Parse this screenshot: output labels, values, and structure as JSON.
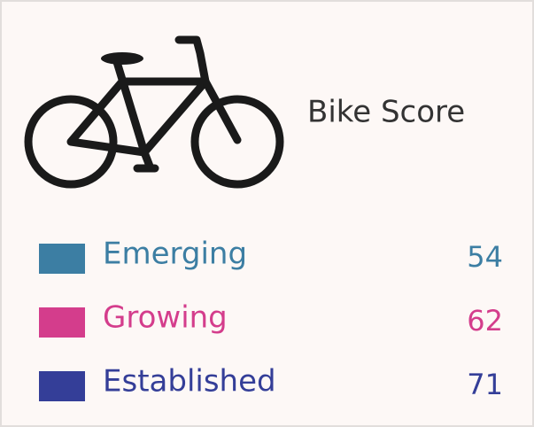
{
  "title": "Bike Score",
  "items": [
    {
      "label": "Emerging",
      "value": 54,
      "color": "#3c7ea3"
    },
    {
      "label": "Growing",
      "value": 62,
      "color": "#d43d8c"
    },
    {
      "label": "Established",
      "value": 71,
      "color": "#343e98"
    }
  ]
}
